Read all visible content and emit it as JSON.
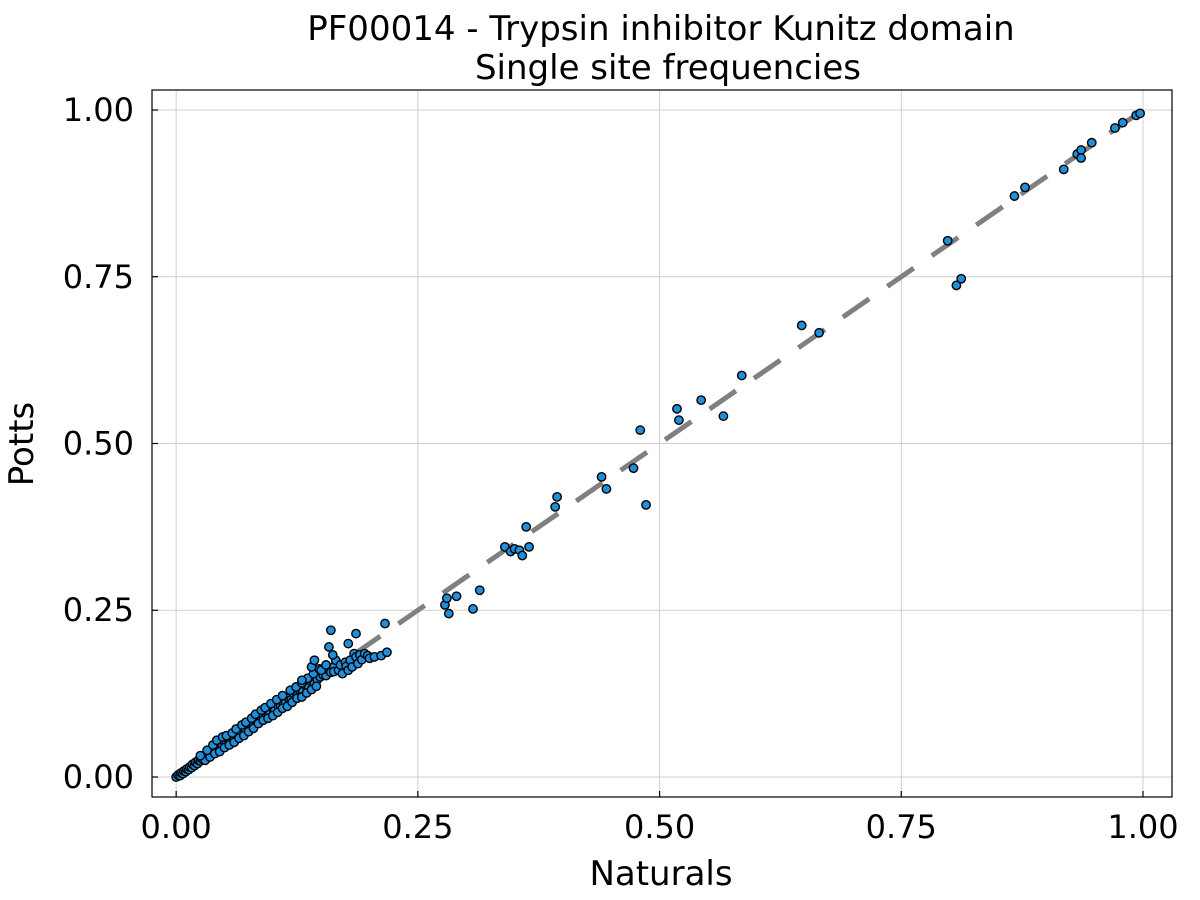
{
  "chart_data": {
    "type": "scatter",
    "title": "PF00014 - Trypsin inhibitor Kunitz domain",
    "subtitle": "Single site frequencies",
    "xlabel": "Naturals",
    "ylabel": "Potts",
    "xlim": [
      -0.025,
      1.03
    ],
    "ylim": [
      -0.03,
      1.03
    ],
    "xticks": [
      0.0,
      0.25,
      0.5,
      0.75,
      1.0
    ],
    "xtick_labels": [
      "0.00",
      "0.25",
      "0.50",
      "0.75",
      "1.00"
    ],
    "yticks": [
      0.0,
      0.25,
      0.5,
      0.75,
      1.0
    ],
    "ytick_labels": [
      "0.00",
      "0.25",
      "0.50",
      "0.75",
      "1.00"
    ],
    "grid": true,
    "legend": "none",
    "reference_line": {
      "style": "dashed",
      "color": "#808080",
      "from": [
        0,
        0
      ],
      "to": [
        1,
        1
      ]
    },
    "marker_color": "#1f8fdc",
    "marker_edge_color": "#000000",
    "points": [
      [
        0.0,
        0.0
      ],
      [
        0.002,
        0.003
      ],
      [
        0.004,
        0.002
      ],
      [
        0.005,
        0.006
      ],
      [
        0.007,
        0.005
      ],
      [
        0.008,
        0.009
      ],
      [
        0.01,
        0.008
      ],
      [
        0.011,
        0.012
      ],
      [
        0.013,
        0.011
      ],
      [
        0.014,
        0.015
      ],
      [
        0.016,
        0.014
      ],
      [
        0.017,
        0.019
      ],
      [
        0.019,
        0.017
      ],
      [
        0.02,
        0.022
      ],
      [
        0.022,
        0.02
      ],
      [
        0.023,
        0.025
      ],
      [
        0.025,
        0.024
      ],
      [
        0.026,
        0.028
      ],
      [
        0.028,
        0.026
      ],
      [
        0.03,
        0.032
      ],
      [
        0.031,
        0.029
      ],
      [
        0.033,
        0.035
      ],
      [
        0.034,
        0.033
      ],
      [
        0.036,
        0.039
      ],
      [
        0.038,
        0.036
      ],
      [
        0.04,
        0.042
      ],
      [
        0.041,
        0.04
      ],
      [
        0.043,
        0.046
      ],
      [
        0.045,
        0.043
      ],
      [
        0.047,
        0.049
      ],
      [
        0.048,
        0.047
      ],
      [
        0.05,
        0.053
      ],
      [
        0.052,
        0.05
      ],
      [
        0.054,
        0.056
      ],
      [
        0.056,
        0.054
      ],
      [
        0.058,
        0.061
      ],
      [
        0.06,
        0.057
      ],
      [
        0.062,
        0.064
      ],
      [
        0.064,
        0.062
      ],
      [
        0.066,
        0.069
      ],
      [
        0.068,
        0.066
      ],
      [
        0.07,
        0.073
      ],
      [
        0.072,
        0.07
      ],
      [
        0.074,
        0.078
      ],
      [
        0.076,
        0.075
      ],
      [
        0.078,
        0.081
      ],
      [
        0.08,
        0.078
      ],
      [
        0.082,
        0.086
      ],
      [
        0.084,
        0.083
      ],
      [
        0.086,
        0.089
      ],
      [
        0.088,
        0.087
      ],
      [
        0.09,
        0.093
      ],
      [
        0.093,
        0.09
      ],
      [
        0.095,
        0.098
      ],
      [
        0.097,
        0.095
      ],
      [
        0.1,
        0.103
      ],
      [
        0.102,
        0.1
      ],
      [
        0.105,
        0.108
      ],
      [
        0.108,
        0.106
      ],
      [
        0.11,
        0.113
      ],
      [
        0.113,
        0.111
      ],
      [
        0.116,
        0.118
      ],
      [
        0.119,
        0.116
      ],
      [
        0.122,
        0.124
      ],
      [
        0.125,
        0.122
      ],
      [
        0.128,
        0.13
      ],
      [
        0.131,
        0.128
      ],
      [
        0.134,
        0.137
      ],
      [
        0.137,
        0.134
      ],
      [
        0.14,
        0.143
      ],
      [
        0.143,
        0.14
      ],
      [
        0.146,
        0.146
      ],
      [
        0.149,
        0.15
      ],
      [
        0.152,
        0.153
      ],
      [
        0.155,
        0.152
      ],
      [
        0.158,
        0.16
      ],
      [
        0.16,
        0.157
      ],
      [
        0.163,
        0.165
      ],
      [
        0.03,
        0.025
      ],
      [
        0.035,
        0.03
      ],
      [
        0.04,
        0.035
      ],
      [
        0.045,
        0.038
      ],
      [
        0.05,
        0.044
      ],
      [
        0.055,
        0.048
      ],
      [
        0.06,
        0.052
      ],
      [
        0.065,
        0.058
      ],
      [
        0.07,
        0.062
      ],
      [
        0.075,
        0.068
      ],
      [
        0.08,
        0.073
      ],
      [
        0.085,
        0.08
      ],
      [
        0.09,
        0.085
      ],
      [
        0.095,
        0.088
      ],
      [
        0.1,
        0.092
      ],
      [
        0.105,
        0.097
      ],
      [
        0.11,
        0.103
      ],
      [
        0.115,
        0.106
      ],
      [
        0.12,
        0.112
      ],
      [
        0.125,
        0.118
      ],
      [
        0.13,
        0.12
      ],
      [
        0.135,
        0.126
      ],
      [
        0.14,
        0.131
      ],
      [
        0.145,
        0.136
      ],
      [
        0.025,
        0.032
      ],
      [
        0.032,
        0.04
      ],
      [
        0.038,
        0.048
      ],
      [
        0.042,
        0.055
      ],
      [
        0.048,
        0.06
      ],
      [
        0.052,
        0.062
      ],
      [
        0.058,
        0.066
      ],
      [
        0.062,
        0.072
      ],
      [
        0.068,
        0.078
      ],
      [
        0.072,
        0.082
      ],
      [
        0.078,
        0.088
      ],
      [
        0.082,
        0.094
      ],
      [
        0.088,
        0.1
      ],
      [
        0.092,
        0.104
      ],
      [
        0.098,
        0.11
      ],
      [
        0.104,
        0.116
      ],
      [
        0.11,
        0.122
      ],
      [
        0.118,
        0.13
      ],
      [
        0.124,
        0.135
      ],
      [
        0.13,
        0.141
      ],
      [
        0.136,
        0.148
      ],
      [
        0.142,
        0.155
      ],
      [
        0.148,
        0.162
      ],
      [
        0.163,
        0.158
      ],
      [
        0.165,
        0.175
      ],
      [
        0.168,
        0.16
      ],
      [
        0.17,
        0.168
      ],
      [
        0.172,
        0.155
      ],
      [
        0.175,
        0.172
      ],
      [
        0.176,
        0.166
      ],
      [
        0.178,
        0.16
      ],
      [
        0.18,
        0.175
      ],
      [
        0.182,
        0.165
      ],
      [
        0.184,
        0.185
      ],
      [
        0.186,
        0.18
      ],
      [
        0.188,
        0.17
      ],
      [
        0.19,
        0.183
      ],
      [
        0.192,
        0.176
      ],
      [
        0.195,
        0.185
      ],
      [
        0.198,
        0.182
      ],
      [
        0.2,
        0.178
      ],
      [
        0.205,
        0.18
      ],
      [
        0.212,
        0.182
      ],
      [
        0.218,
        0.187
      ],
      [
        0.216,
        0.23
      ],
      [
        0.14,
        0.165
      ],
      [
        0.143,
        0.175
      ],
      [
        0.158,
        0.195
      ],
      [
        0.162,
        0.183
      ],
      [
        0.178,
        0.2
      ],
      [
        0.186,
        0.215
      ],
      [
        0.16,
        0.22
      ],
      [
        0.15,
        0.16
      ],
      [
        0.155,
        0.168
      ],
      [
        0.13,
        0.145
      ],
      [
        0.278,
        0.258
      ],
      [
        0.28,
        0.268
      ],
      [
        0.282,
        0.245
      ],
      [
        0.29,
        0.271
      ],
      [
        0.307,
        0.252
      ],
      [
        0.314,
        0.28
      ],
      [
        0.34,
        0.345
      ],
      [
        0.346,
        0.338
      ],
      [
        0.35,
        0.342
      ],
      [
        0.355,
        0.34
      ],
      [
        0.358,
        0.332
      ],
      [
        0.362,
        0.375
      ],
      [
        0.365,
        0.345
      ],
      [
        0.392,
        0.405
      ],
      [
        0.394,
        0.42
      ],
      [
        0.44,
        0.45
      ],
      [
        0.445,
        0.432
      ],
      [
        0.473,
        0.463
      ],
      [
        0.48,
        0.52
      ],
      [
        0.486,
        0.408
      ],
      [
        0.518,
        0.552
      ],
      [
        0.52,
        0.535
      ],
      [
        0.543,
        0.565
      ],
      [
        0.566,
        0.541
      ],
      [
        0.585,
        0.602
      ],
      [
        0.647,
        0.677
      ],
      [
        0.665,
        0.666
      ],
      [
        0.798,
        0.804
      ],
      [
        0.807,
        0.737
      ],
      [
        0.812,
        0.747
      ],
      [
        0.867,
        0.871
      ],
      [
        0.878,
        0.884
      ],
      [
        0.918,
        0.911
      ],
      [
        0.932,
        0.934
      ],
      [
        0.936,
        0.94
      ],
      [
        0.936,
        0.928
      ],
      [
        0.947,
        0.951
      ],
      [
        0.971,
        0.973
      ],
      [
        0.979,
        0.981
      ],
      [
        0.993,
        0.992
      ],
      [
        0.997,
        0.995
      ]
    ]
  }
}
